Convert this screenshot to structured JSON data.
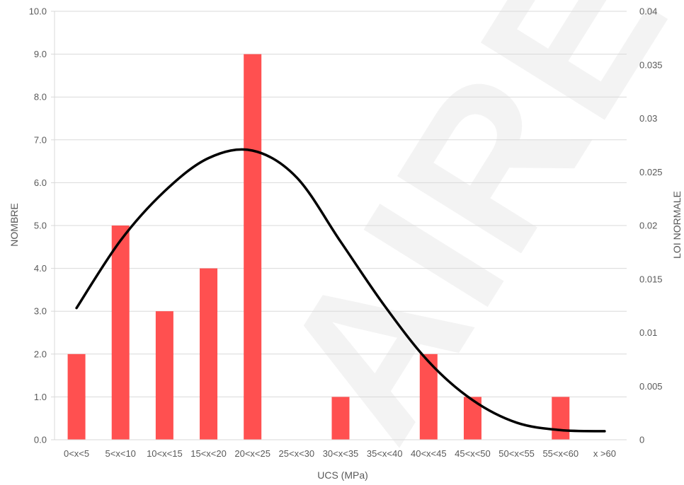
{
  "chart_data": {
    "type": "bar",
    "categories": [
      "0<x<5",
      "5<x<10",
      "10<x<15",
      "15<x<20",
      "20<x<25",
      "25<x<30",
      "30<x<35",
      "35<x<40",
      "40<x<45",
      "45<x<50",
      "50<x<55",
      "55<x<60",
      "x >60"
    ],
    "series": [
      {
        "type": "bar",
        "axis": "left",
        "values": [
          2,
          5,
          3,
          4,
          9,
          0,
          1,
          0,
          2,
          1,
          0,
          1,
          0
        ],
        "color": "#ff5050"
      },
      {
        "type": "line",
        "axis": "right",
        "values": [
          0.0123,
          0.0186,
          0.0232,
          0.0263,
          0.027,
          0.0245,
          0.0185,
          0.0125,
          0.0073,
          0.0037,
          0.0016,
          0.0009,
          0.0008
        ],
        "color": "#000000"
      }
    ],
    "xlabel": "UCS (MPa)",
    "ylabel": "NOMBRE",
    "y2label": "LOI NORMALE",
    "ylim": [
      0,
      10
    ],
    "y2lim": [
      0,
      0.04
    ],
    "yticks": [
      "0.0",
      "1.0",
      "2.0",
      "3.0",
      "4.0",
      "5.0",
      "6.0",
      "7.0",
      "8.0",
      "9.0",
      "10.0"
    ],
    "y2ticks": [
      "0",
      "0.005",
      "0.01",
      "0.015",
      "0.02",
      "0.025",
      "0.03",
      "0.035",
      "0.04"
    ],
    "grid": true,
    "watermark": "AIRE",
    "colors": {
      "grid": "#d9d9d9",
      "text": "#595959",
      "watermark": "#f3f3f3"
    }
  }
}
